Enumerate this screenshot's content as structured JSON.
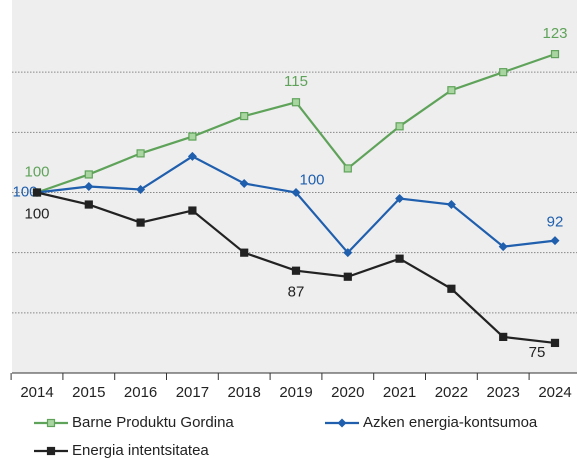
{
  "chart_data": {
    "type": "line",
    "x": [
      2014,
      2015,
      2016,
      2017,
      2018,
      2019,
      2020,
      2021,
      2022,
      2023,
      2024
    ],
    "series": [
      {
        "name": "Barne Produktu Gordina",
        "color": "#5fa35a",
        "marker": "square",
        "values": [
          100,
          103,
          106.5,
          109.3,
          112.7,
          115,
          104,
          111,
          117,
          120,
          123
        ],
        "value_labels": [
          "100",
          null,
          null,
          null,
          null,
          "115",
          null,
          null,
          null,
          null,
          "123"
        ]
      },
      {
        "name": "Azken energia-kontsumoa",
        "color": "#1f5fad",
        "marker": "diamond",
        "values": [
          100,
          101,
          100.5,
          106,
          101.5,
          100,
          90,
          99,
          98,
          91,
          92
        ],
        "value_labels": [
          "100",
          null,
          null,
          null,
          null,
          "100",
          null,
          null,
          null,
          null,
          "92"
        ]
      },
      {
        "name": "Energia intentsitatea",
        "color": "#222222",
        "marker": "square",
        "values": [
          100,
          98,
          95,
          97,
          90,
          87,
          86,
          89,
          84,
          76,
          75
        ],
        "value_labels": [
          "100",
          null,
          null,
          null,
          null,
          "87",
          null,
          null,
          null,
          null,
          "75"
        ]
      }
    ],
    "ylim": [
      70,
      130
    ],
    "yticks": [
      80,
      90,
      100,
      110,
      120
    ],
    "grid": true
  }
}
